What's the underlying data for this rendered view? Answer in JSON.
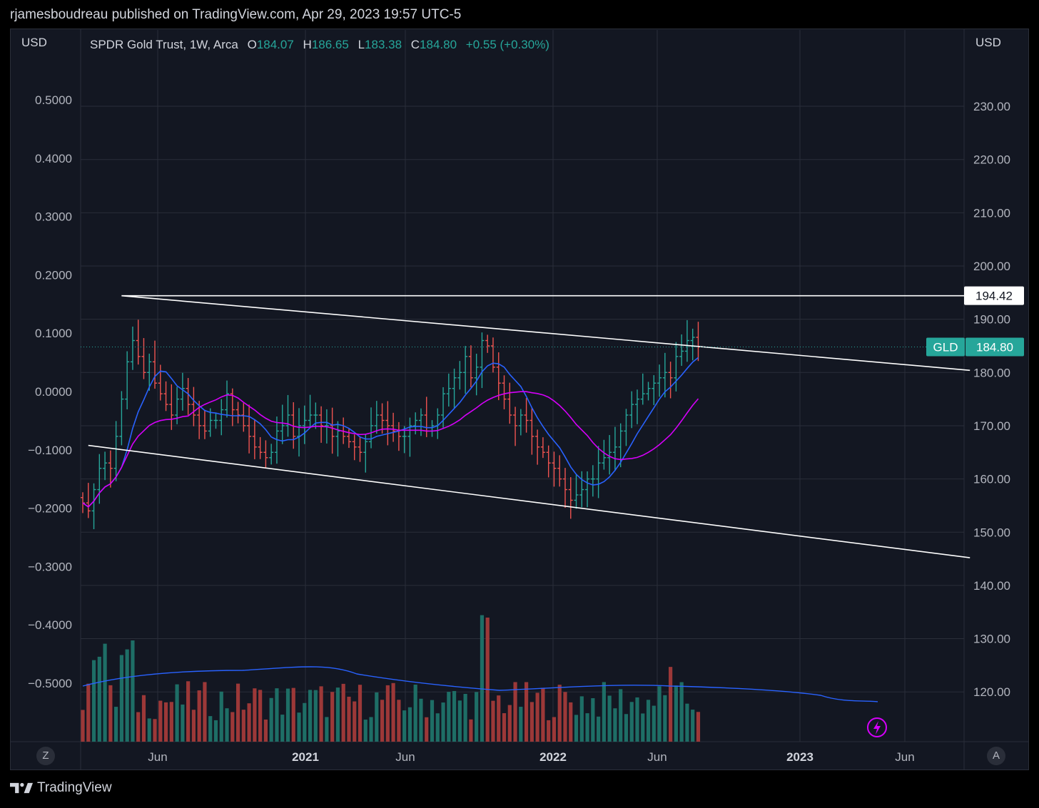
{
  "header": {
    "published_line": "rjamesboudreau published on TradingView.com, Apr 29, 2023 19:57 UTC-5"
  },
  "footer": {
    "brand": "TradingView",
    "logo_icon": "tradingview-logo-icon"
  },
  "legend": {
    "symbol": "SPDR Gold Trust, 1W, Arca",
    "open_label": "O",
    "open": "184.07",
    "high_label": "H",
    "high": "186.65",
    "low_label": "L",
    "low": "183.38",
    "close_label": "C",
    "close": "184.80",
    "change": "+0.55 (+0.30%)"
  },
  "units": {
    "left": "USD",
    "right": "USD"
  },
  "buttons": {
    "left_corner": "Z",
    "right_corner": "A"
  },
  "colors": {
    "background": "#131722",
    "up": "#26a69a",
    "down": "#ef5350",
    "ma_fast": "#2962ff",
    "ma_slow": "#d500f9",
    "trendline": "#ffffff",
    "grid": "#2a2e39"
  },
  "chart_data": {
    "type": "bar",
    "symbol": "GLD",
    "interval": "1W",
    "title": "SPDR Gold Trust, 1W, Arca",
    "right_axis": {
      "ticks": [
        "230.00",
        "220.00",
        "210.00",
        "200.00",
        "190.00",
        "180.00",
        "170.00",
        "160.00",
        "150.00",
        "140.00",
        "130.00",
        "120.00"
      ],
      "ylim": [
        111.5,
        240
      ]
    },
    "left_axis": {
      "ticks": [
        "0.5000",
        "0.4000",
        "0.3000",
        "0.2000",
        "0.1000",
        "0.0000",
        "−0.1000",
        "−0.2000",
        "−0.3000",
        "−0.4000",
        "−0.5000"
      ]
    },
    "x_ticks": [
      {
        "label": "Jun",
        "bold": false
      },
      {
        "label": "2021",
        "bold": true
      },
      {
        "label": "Jun",
        "bold": false
      },
      {
        "label": "2022",
        "bold": true
      },
      {
        "label": "Jun",
        "bold": false
      },
      {
        "label": "2023",
        "bold": true
      },
      {
        "label": "Jun",
        "bold": false
      }
    ],
    "price_labels": [
      {
        "label": "194.42",
        "value": 194.42,
        "style": "white"
      },
      {
        "label": "184.80",
        "value": 184.8,
        "style": "green",
        "tag": "GLD"
      }
    ],
    "trendlines": [
      {
        "name": "horizontal resistance",
        "start": {
          "week": 7,
          "price": 194.42
        },
        "end": {
          "week": 160,
          "price": 194.42
        }
      },
      {
        "name": "upper channel",
        "start": {
          "week": 7,
          "price": 194.42
        },
        "end": {
          "week": 160,
          "price": 180.4
        }
      },
      {
        "name": "lower channel",
        "start": {
          "week": 1,
          "price": 166.3
        },
        "end": {
          "week": 160,
          "price": 145.2
        }
      }
    ],
    "close": [
      155.5,
      154,
      158,
      162,
      163,
      162,
      168,
      175,
      182,
      186,
      183,
      180,
      182,
      178,
      176,
      174,
      172,
      175,
      177,
      174,
      172,
      170,
      169,
      171,
      171,
      173,
      176,
      173,
      172,
      170,
      168,
      166,
      165,
      164,
      165,
      169,
      170,
      172,
      168,
      170,
      171,
      172,
      172,
      170,
      170,
      168,
      169,
      168,
      167,
      166,
      165,
      167,
      170,
      172,
      171,
      170,
      169,
      168,
      168,
      170,
      171,
      172,
      169,
      170,
      172,
      176,
      177,
      179,
      180,
      183,
      179,
      181,
      186,
      185,
      181,
      178,
      175,
      172,
      170,
      172,
      171,
      168,
      166,
      165,
      163,
      162,
      160,
      158,
      156,
      157,
      158,
      160,
      160,
      163,
      164,
      165,
      166,
      169,
      172,
      174,
      175,
      176,
      177,
      178,
      179,
      180,
      179,
      183,
      184,
      186,
      186.6,
      184.8
    ]
  }
}
